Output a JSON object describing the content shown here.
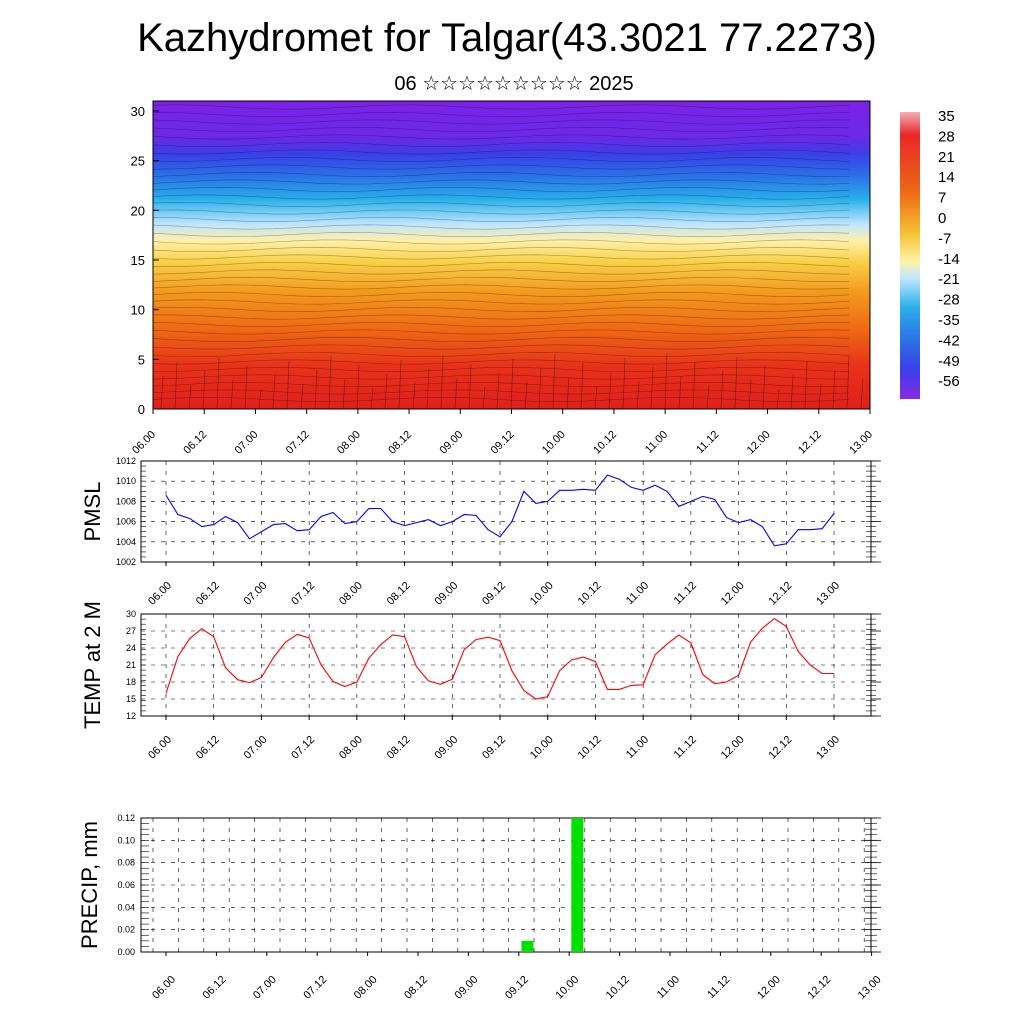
{
  "header": {
    "title": "Kazhydromet for Talgar(43.3021 77.2273)",
    "subtitle": "06 ☆☆☆☆☆☆☆☆☆ 2025"
  },
  "time_labels": [
    "06.00",
    "06.12",
    "07.00",
    "07.12",
    "08.00",
    "08.12",
    "09.00",
    "09.12",
    "10.00",
    "10.12",
    "11.00",
    "11.12",
    "12.00",
    "12.12",
    "13.00"
  ],
  "colorbar": {
    "labels": [
      "35",
      "28",
      "21",
      "14",
      "7",
      "0",
      "-7",
      "-14",
      "-21",
      "-28",
      "-35",
      "-42",
      "-49",
      "-56"
    ]
  },
  "chart_data": [
    {
      "type": "heatmap",
      "name": "vertical-section",
      "ylabel": "",
      "ylim": [
        0,
        31
      ],
      "yticks": [
        "0",
        "5",
        "10",
        "15",
        "20",
        "25",
        "30"
      ],
      "x": [
        "06.00",
        "06.12",
        "07.00",
        "07.12",
        "08.00",
        "08.12",
        "09.00",
        "09.12",
        "10.00",
        "10.12",
        "11.00",
        "11.12",
        "12.00",
        "12.12",
        "13.00"
      ],
      "color_scale": {
        "min": -56,
        "max": 35,
        "colors": [
          "#7a1fe0",
          "#2f44e6",
          "#2aa7e8",
          "#bfe6ff",
          "#fff2a6",
          "#f5c030",
          "#f07a10",
          "#e2241a",
          "#f2a0a6"
        ]
      },
      "description_levels": [
        {
          "level": 30,
          "value": -56
        },
        {
          "level": 25,
          "value": -49
        },
        {
          "level": 20,
          "value": -28
        },
        {
          "level": 16,
          "value": -14
        },
        {
          "level": 15,
          "value": 0
        },
        {
          "level": 10,
          "value": 7
        },
        {
          "level": 5,
          "value": 21
        },
        {
          "level": 0,
          "value": 28
        }
      ]
    },
    {
      "type": "line",
      "name": "PMSL",
      "ylabel": "PMSL",
      "ylim": [
        1002,
        1012
      ],
      "yticks": [
        "1012",
        "1010",
        "1008",
        "1006",
        "1004",
        "1002"
      ],
      "color": "#0000ff",
      "x_hours": [
        0,
        3,
        6,
        9,
        12,
        15,
        18,
        21,
        24,
        27,
        30,
        33,
        36,
        39,
        42,
        45,
        48,
        51,
        54,
        57,
        60,
        63,
        66,
        69,
        72,
        75,
        78,
        81,
        84,
        87,
        90,
        93,
        96,
        99,
        102,
        105,
        108,
        111,
        114,
        117,
        120,
        123,
        126,
        129,
        132,
        135,
        138,
        141,
        144,
        147,
        150,
        153,
        156,
        159,
        162,
        165,
        168
      ],
      "values": [
        1008.6,
        1006.7,
        1006.3,
        1005.5,
        1005.7,
        1006.5,
        1005.9,
        1004.3,
        1005.0,
        1005.7,
        1005.8,
        1005.1,
        1005.2,
        1006.5,
        1006.9,
        1005.8,
        1006.0,
        1007.3,
        1007.3,
        1006.0,
        1005.6,
        1005.9,
        1006.2,
        1005.6,
        1006.0,
        1006.7,
        1006.6,
        1005.2,
        1004.5,
        1006.0,
        1009.0,
        1007.8,
        1008.0,
        1009.1,
        1009.1,
        1009.2,
        1009.1,
        1010.6,
        1010.2,
        1009.4,
        1009.1,
        1009.6,
        1009.0,
        1007.5,
        1008.0,
        1008.5,
        1008.2,
        1006.4,
        1005.9,
        1006.2,
        1005.5,
        1003.6,
        1003.8,
        1005.2,
        1005.2,
        1005.3,
        1006.8
      ]
    },
    {
      "type": "line",
      "name": "TEMP at 2 M",
      "ylabel": "TEMP at 2 M",
      "ylim": [
        12,
        30
      ],
      "yticks": [
        "30",
        "27",
        "24",
        "21",
        "18",
        "15",
        "12"
      ],
      "color": "#ff0000",
      "x_hours": [
        0,
        3,
        6,
        9,
        12,
        15,
        18,
        21,
        24,
        27,
        30,
        33,
        36,
        39,
        42,
        45,
        48,
        51,
        54,
        57,
        60,
        63,
        66,
        69,
        72,
        75,
        78,
        81,
        84,
        87,
        90,
        93,
        96,
        99,
        102,
        105,
        108,
        111,
        114,
        117,
        120,
        123,
        126,
        129,
        132,
        135,
        138,
        141,
        144,
        147,
        150,
        153,
        156,
        159,
        162,
        165,
        168
      ],
      "values": [
        16.0,
        22.5,
        25.7,
        27.4,
        26.0,
        20.5,
        18.4,
        17.9,
        18.8,
        22.3,
        25.0,
        26.4,
        25.8,
        21.0,
        18.1,
        17.2,
        18.0,
        22.2,
        24.6,
        26.3,
        26.0,
        20.7,
        18.2,
        17.6,
        18.5,
        23.7,
        25.5,
        25.9,
        25.3,
        20.0,
        16.5,
        15.0,
        15.4,
        20.0,
        21.9,
        22.4,
        21.6,
        16.7,
        16.7,
        17.4,
        17.5,
        22.8,
        24.7,
        26.3,
        24.9,
        19.3,
        17.7,
        18.0,
        19.2,
        25.0,
        27.5,
        29.2,
        27.8,
        23.4,
        21.0,
        19.5,
        19.5
      ]
    },
    {
      "type": "bar",
      "name": "PRECIP, mm",
      "ylabel": "PRECIP, mm",
      "ylim": [
        0,
        0.12
      ],
      "yticks": [
        "0.12",
        "0.10",
        "0.08",
        "0.06",
        "0.04",
        "0.02",
        "0.00"
      ],
      "color": "#00e000",
      "bars": [
        {
          "x_hour": 87,
          "value": 0.01
        },
        {
          "x_hour": 99,
          "value": 0.12
        }
      ]
    }
  ]
}
